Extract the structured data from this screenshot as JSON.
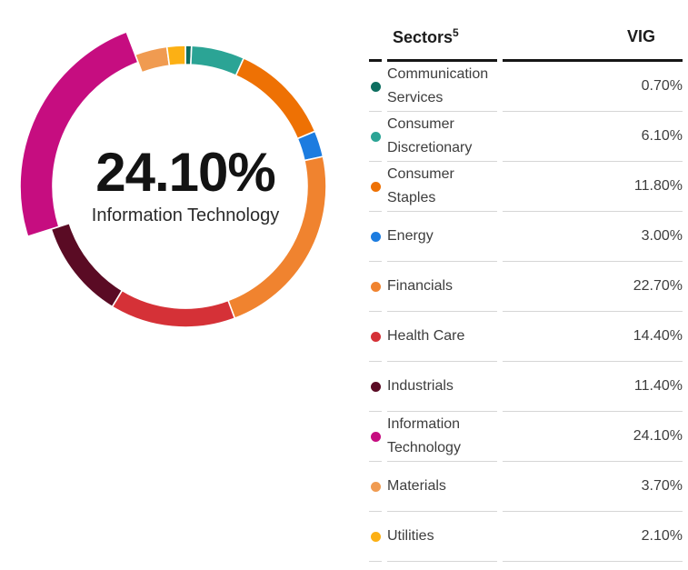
{
  "chart_data": {
    "type": "pie",
    "variant": "donut",
    "start_angle_deg": 0,
    "direction": "clockwise",
    "legend_position": "right-table",
    "highlight_category": "Information Technology",
    "center_label": {
      "value": "24.10%",
      "label": "Information Technology"
    },
    "segments": [
      {
        "label": "Communication Services",
        "value": 0.7,
        "color": "#0d6e60"
      },
      {
        "label": "Consumer Discretionary",
        "value": 6.1,
        "color": "#2ba495"
      },
      {
        "label": "Consumer Staples",
        "value": 11.8,
        "color": "#ee7104"
      },
      {
        "label": "Energy",
        "value": 3.0,
        "color": "#1c7ce0"
      },
      {
        "label": "Financials",
        "value": 22.7,
        "color": "#f0832f"
      },
      {
        "label": "Health Care",
        "value": 14.4,
        "color": "#d53137"
      },
      {
        "label": "Industrials",
        "value": 11.4,
        "color": "#5a0b24"
      },
      {
        "label": "Information Technology",
        "value": 24.1,
        "color": "#c60d80"
      },
      {
        "label": "Materials",
        "value": 3.7,
        "color": "#f09b51"
      },
      {
        "label": "Utilities",
        "value": 2.1,
        "color": "#fcb014"
      }
    ]
  },
  "table": {
    "headers": {
      "sector": "Sectors",
      "sector_superscript": "5",
      "fund": "VIG"
    },
    "rows": [
      {
        "sector": "Communication Services",
        "value": "0.70%"
      },
      {
        "sector": "Consumer Discretionary",
        "value": "6.10%"
      },
      {
        "sector": "Consumer Staples",
        "value": "11.80%"
      },
      {
        "sector": "Energy",
        "value": "3.00%"
      },
      {
        "sector": "Financials",
        "value": "22.70%"
      },
      {
        "sector": "Health Care",
        "value": "14.40%"
      },
      {
        "sector": "Industrials",
        "value": "11.40%"
      },
      {
        "sector": "Information Technology",
        "value": "24.10%"
      },
      {
        "sector": "Materials",
        "value": "3.70%"
      },
      {
        "sector": "Utilities",
        "value": "2.10%"
      }
    ]
  }
}
